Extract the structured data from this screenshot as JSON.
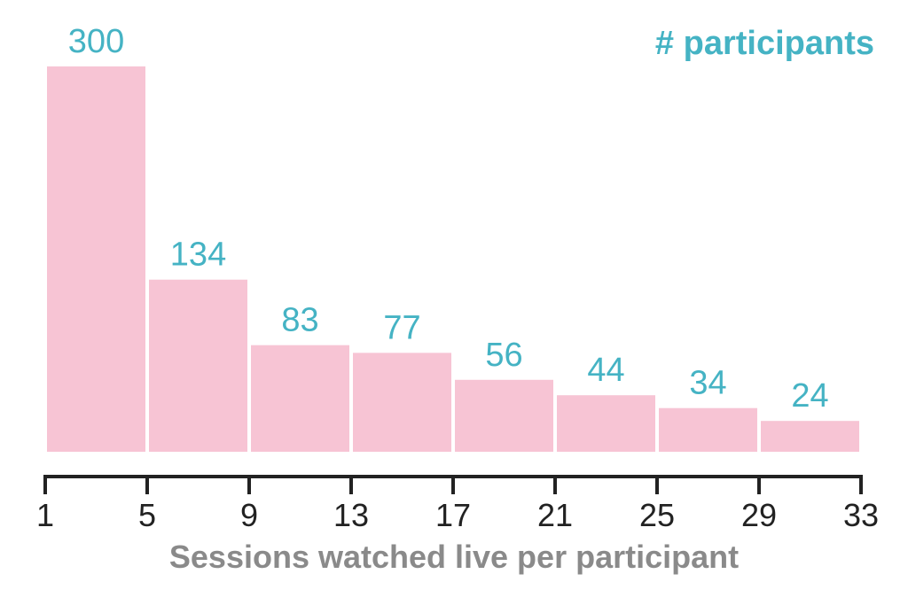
{
  "chart_data": {
    "type": "bar",
    "bins": [
      [
        1,
        5
      ],
      [
        5,
        9
      ],
      [
        9,
        13
      ],
      [
        13,
        17
      ],
      [
        17,
        21
      ],
      [
        21,
        25
      ],
      [
        25,
        29
      ],
      [
        29,
        33
      ]
    ],
    "values": [
      300,
      134,
      83,
      77,
      56,
      44,
      34,
      24
    ],
    "series": [
      {
        "name": "# participants",
        "values": [
          300,
          134,
          83,
          77,
          56,
          44,
          34,
          24
        ]
      }
    ],
    "xticks": [
      "1",
      "5",
      "9",
      "13",
      "17",
      "21",
      "25",
      "29",
      "33"
    ],
    "xlabel": "Sessions watched live per participant",
    "ylabel": "",
    "title": "",
    "xlim": [
      1,
      33
    ],
    "ylim": [
      0,
      300
    ],
    "grid": false,
    "legend": "top-right",
    "colors": {
      "bar": "#f7c4d4",
      "label": "#45b3c4",
      "axis": "#222222",
      "xlabel": "#8a8a8a"
    }
  }
}
